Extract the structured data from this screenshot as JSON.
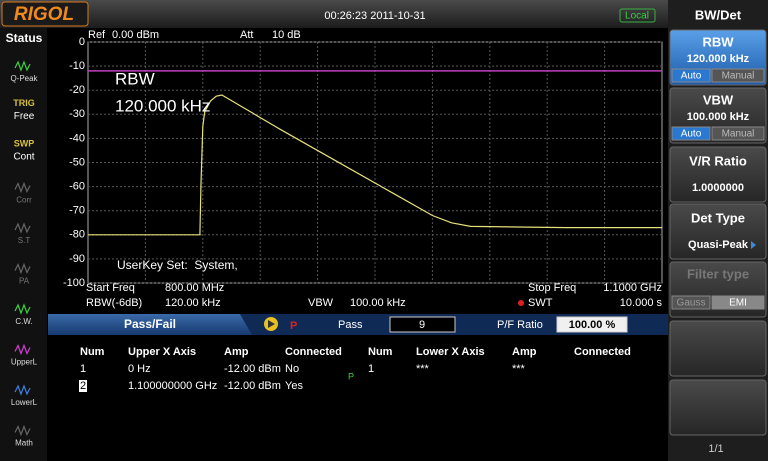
{
  "header": {
    "logo": "RIGOL",
    "time": "00:26:23 2011-10-31",
    "mode": "Local"
  },
  "status": {
    "title": "Status",
    "items": [
      {
        "label": "Q-Peak"
      },
      {
        "top": "TRIG",
        "label": "Free"
      },
      {
        "top": "SWP",
        "label": "Cont"
      },
      {
        "label": "Corr"
      },
      {
        "label": "S.T"
      },
      {
        "label": "PA"
      },
      {
        "label": "C.W."
      },
      {
        "label": "UpperL"
      },
      {
        "label": "LowerL"
      },
      {
        "label": "Math"
      }
    ]
  },
  "readout": {
    "ref_label": "Ref",
    "ref": "0.00 dBm",
    "att_label": "Att",
    "att": "10 dB",
    "start_label": "Start Freq",
    "stop_label": "Stop Freq",
    "rbw_label": "RBW(-6dB)",
    "rbw": "120.00 kHz",
    "vbw_label": "VBW",
    "vbw": "100.00 kHz",
    "swt_label": "SWT",
    "swt": "10.000 s"
  },
  "chart_data": {
    "type": "line",
    "annotations": [
      "RBW",
      "120.000 kHz",
      "UserKey Set:  System,"
    ],
    "x": [
      800,
      820,
      858.5,
      859,
      860,
      861,
      864,
      867,
      870,
      900,
      930,
      960,
      980,
      990,
      1000,
      1050,
      1100
    ],
    "values": [
      -80,
      -80,
      -80,
      -60,
      -35,
      -29,
      -24.5,
      -22.5,
      -22,
      -36,
      -49.5,
      -63,
      -72,
      -75,
      -76.5,
      -77,
      -77
    ],
    "color": "#e8e07a",
    "limit": {
      "value": -12,
      "color": "#c040c0"
    },
    "xlim": [
      800,
      1100
    ],
    "xticks": [
      {
        "value": 800,
        "label": "800.00 MHz"
      },
      {
        "value": 1100,
        "label": "1.1000 GHz"
      }
    ],
    "ylim": [
      -100,
      0
    ],
    "yticks": [
      0,
      -10,
      -20,
      -30,
      -40,
      -50,
      -60,
      -70,
      -80,
      -90,
      -100
    ],
    "grid": true
  },
  "passfail": {
    "title": "Pass/Fail",
    "state": "P",
    "pass_label": "Pass",
    "pass": "9",
    "ratio_label": "P/F Ratio",
    "ratio": "100.00 %",
    "table": {
      "headers": [
        "Num",
        "Upper X Axis",
        "Amp",
        "Connected",
        "Num",
        "Lower X Axis",
        "Amp",
        "Connected"
      ],
      "rows": [
        [
          "1",
          "0 Hz",
          "-12.00 dBm",
          "No",
          "1",
          "***",
          "***"
        ],
        [
          "2",
          "1.100000000 GHz",
          "-12.00 dBm",
          "Yes"
        ]
      ],
      "marker": "P"
    }
  },
  "menu": {
    "title": "BW/Det",
    "items": [
      {
        "label": "RBW",
        "value": "120.000 kHz",
        "options": [
          "Auto",
          "Manual"
        ]
      },
      {
        "label": "VBW",
        "value": "100.000 kHz",
        "options": [
          "Auto",
          "Manual"
        ]
      },
      {
        "label": "V/R Ratio",
        "value": "1.0000000"
      },
      {
        "label": "Det Type",
        "value": "Quasi-Peak"
      },
      {
        "label": "Filter type",
        "options": [
          "Gauss",
          "EMI"
        ]
      }
    ],
    "page": "1/1"
  }
}
